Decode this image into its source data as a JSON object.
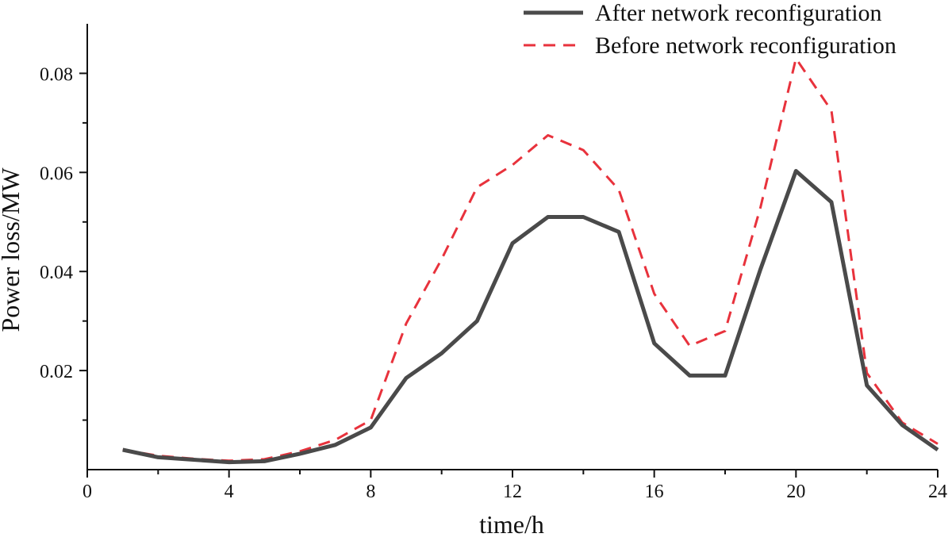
{
  "chart_data": {
    "type": "line",
    "xlabel": "time/h",
    "ylabel": "Power loss/MW",
    "xlim": [
      0,
      24
    ],
    "ylim": [
      0,
      0.09
    ],
    "x_ticks": [
      0,
      4,
      8,
      12,
      16,
      20,
      24
    ],
    "y_ticks": [
      0.02,
      0.04,
      0.06,
      0.08
    ],
    "x_tick_labels": [
      "0",
      "4",
      "8",
      "12",
      "16",
      "20",
      "24"
    ],
    "y_tick_labels": [
      "0.02",
      "0.04",
      "0.06",
      "0.08"
    ],
    "grid": false,
    "legend_position": "top-right",
    "x": [
      1,
      2,
      3,
      4,
      5,
      6,
      7,
      8,
      9,
      10,
      11,
      12,
      13,
      14,
      15,
      16,
      17,
      18,
      19,
      20,
      21,
      22,
      23,
      24
    ],
    "series": [
      {
        "name": "After network reconfiguration",
        "style": "solid",
        "color": "#4a4a4a",
        "values": [
          0.004,
          0.0025,
          0.002,
          0.0015,
          0.0017,
          0.0032,
          0.005,
          0.0085,
          0.0185,
          0.0235,
          0.03,
          0.0457,
          0.051,
          0.051,
          0.048,
          0.0255,
          0.019,
          0.019,
          0.0405,
          0.0603,
          0.054,
          0.017,
          0.009,
          0.004
        ]
      },
      {
        "name": "Before network reconfiguration",
        "style": "dashed",
        "color": "#e8323c",
        "values": [
          0.004,
          0.0028,
          0.0022,
          0.0018,
          0.0021,
          0.0037,
          0.006,
          0.01,
          0.0295,
          0.0425,
          0.057,
          0.0615,
          0.0675,
          0.0645,
          0.0565,
          0.0355,
          0.025,
          0.028,
          0.053,
          0.083,
          0.0725,
          0.0195,
          0.0095,
          0.0052
        ]
      }
    ]
  }
}
